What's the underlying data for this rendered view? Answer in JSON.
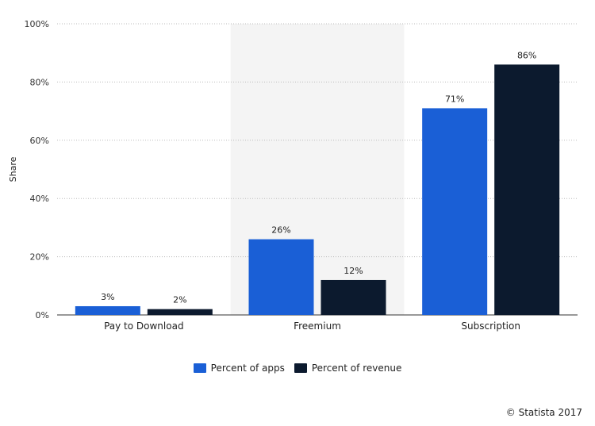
{
  "chart_data": {
    "type": "bar",
    "categories": [
      "Pay to Download",
      "Freemium",
      "Subscription"
    ],
    "series": [
      {
        "name": "Percent of apps",
        "values": [
          3,
          26,
          71
        ],
        "labels": [
          "3%",
          "26%",
          "71%"
        ],
        "color": "#1a5fd6"
      },
      {
        "name": "Percent of revenue",
        "values": [
          2,
          12,
          86
        ],
        "labels": [
          "2%",
          "12%",
          "86%"
        ],
        "color": "#0c1a2e"
      }
    ],
    "ylabel": "Share",
    "ylim": [
      0,
      100
    ],
    "yticks": [
      "0%",
      "20%",
      "40%",
      "60%",
      "80%",
      "100%"
    ],
    "grid": true,
    "highlighted_category": "Freemium",
    "legend_position": "bottom-center"
  },
  "footer": {
    "credit": "© Statista 2017"
  }
}
